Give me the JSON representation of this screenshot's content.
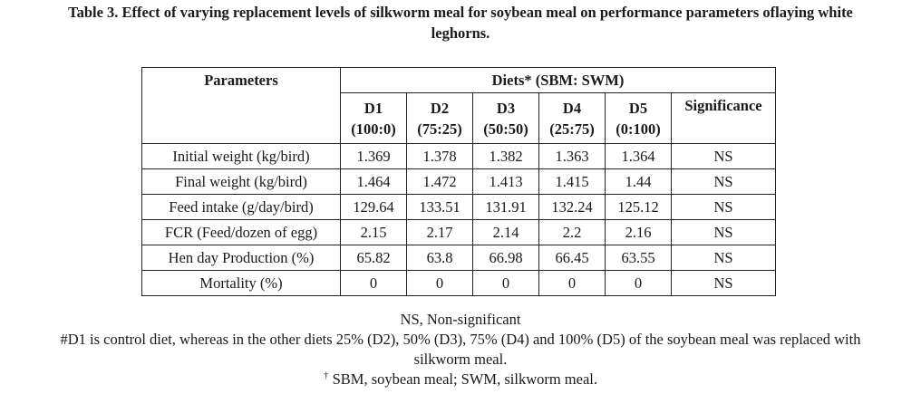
{
  "caption": {
    "line1": "Table 3. Effect of varying replacement levels of silkworm meal for soybean meal on performance parameters oflaying white",
    "line2": "leghorns."
  },
  "table": {
    "parameters_header": "Parameters",
    "diets_header": "Diets* (SBM: SWM)",
    "diets": [
      {
        "name": "D1",
        "ratio": "(100:0)"
      },
      {
        "name": "D2",
        "ratio": "(75:25)"
      },
      {
        "name": "D3",
        "ratio": "(50:50)"
      },
      {
        "name": "D4",
        "ratio": "(25:75)"
      },
      {
        "name": "D5",
        "ratio": "(0:100)"
      }
    ],
    "significance_header": "Significance",
    "rows": [
      {
        "param": "Initial weight (kg/bird)",
        "values": [
          "1.369",
          "1.378",
          "1.382",
          "1.363",
          "1.364"
        ],
        "sig": "NS"
      },
      {
        "param": "Final weight (kg/bird)",
        "values": [
          "1.464",
          "1.472",
          "1.413",
          "1.415",
          "1.44"
        ],
        "sig": "NS"
      },
      {
        "param": "Feed intake (g/day/bird)",
        "values": [
          "129.64",
          "133.51",
          "131.91",
          "132.24",
          "125.12"
        ],
        "sig": "NS"
      },
      {
        "param": "FCR (Feed/dozen of egg)",
        "values": [
          "2.15",
          "2.17",
          "2.14",
          "2.2",
          "2.16"
        ],
        "sig": "NS"
      },
      {
        "param": "Hen day Production (%)",
        "values": [
          "65.82",
          "63.8",
          "66.98",
          "66.45",
          "63.55"
        ],
        "sig": "NS"
      },
      {
        "param": "Mortality (%)",
        "values": [
          "0",
          "0",
          "0",
          "0",
          "0"
        ],
        "sig": "NS"
      }
    ]
  },
  "notes": {
    "ns": "NS, Non-significant",
    "d1_line1": "#D1 is control diet, whereas in the other diets 25% (D2), 50% (D3), 75% (D4) and 100% (D5) of the soybean meal was replaced with",
    "d1_line2": "silkworm meal.",
    "dagger": "†",
    "abbrev": " SBM, soybean meal; SWM, silkworm meal."
  }
}
